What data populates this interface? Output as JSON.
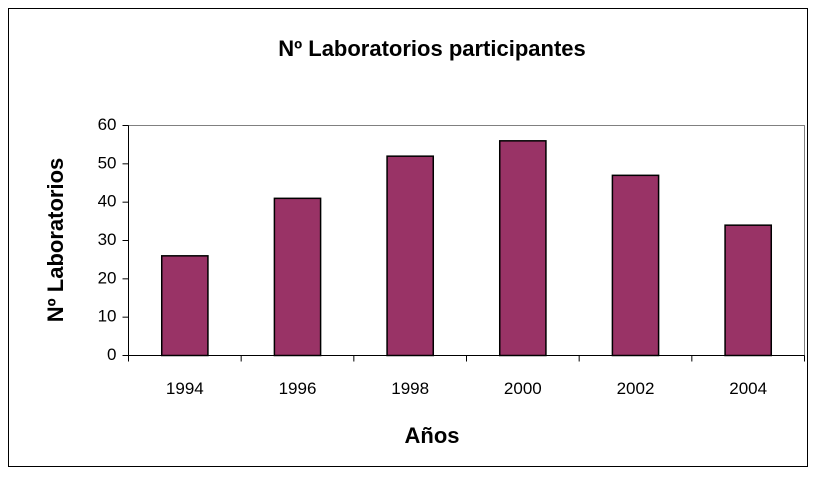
{
  "chart_data": {
    "type": "bar",
    "title": "Nº Laboratorios participantes",
    "x_label": "Años",
    "y_label": "Nº Laboratorios",
    "categories": [
      "1994",
      "1996",
      "1998",
      "2000",
      "2002",
      "2004"
    ],
    "values": [
      26,
      41,
      52,
      56,
      47,
      34
    ],
    "color": "#993366",
    "ylim": [
      0,
      60
    ],
    "yticks": [
      0,
      10,
      20,
      30,
      40,
      50,
      60
    ],
    "grid": false
  }
}
